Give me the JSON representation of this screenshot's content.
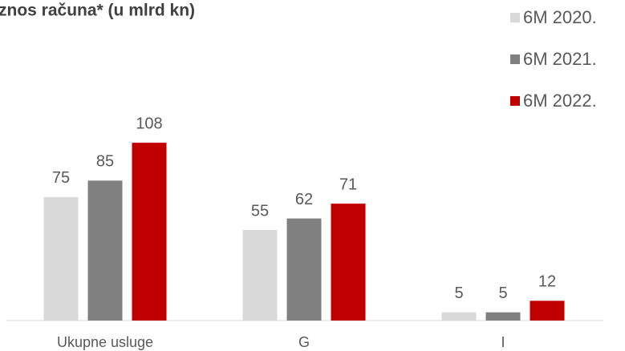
{
  "chart_data": {
    "type": "bar",
    "title": "znos računa* (u mlrd kn)",
    "categories": [
      "Ukupne usluge",
      "G",
      "I"
    ],
    "series": [
      {
        "name": "6M 2020.",
        "color": "#d9d9d9",
        "values": [
          75,
          55,
          5
        ]
      },
      {
        "name": "6M 2021.",
        "color": "#808080",
        "values": [
          85,
          62,
          5
        ]
      },
      {
        "name": "6M 2022.",
        "color": "#c00000",
        "values": [
          108,
          71,
          12
        ]
      }
    ],
    "ylim": [
      0,
      110
    ],
    "legend": "top-right"
  }
}
